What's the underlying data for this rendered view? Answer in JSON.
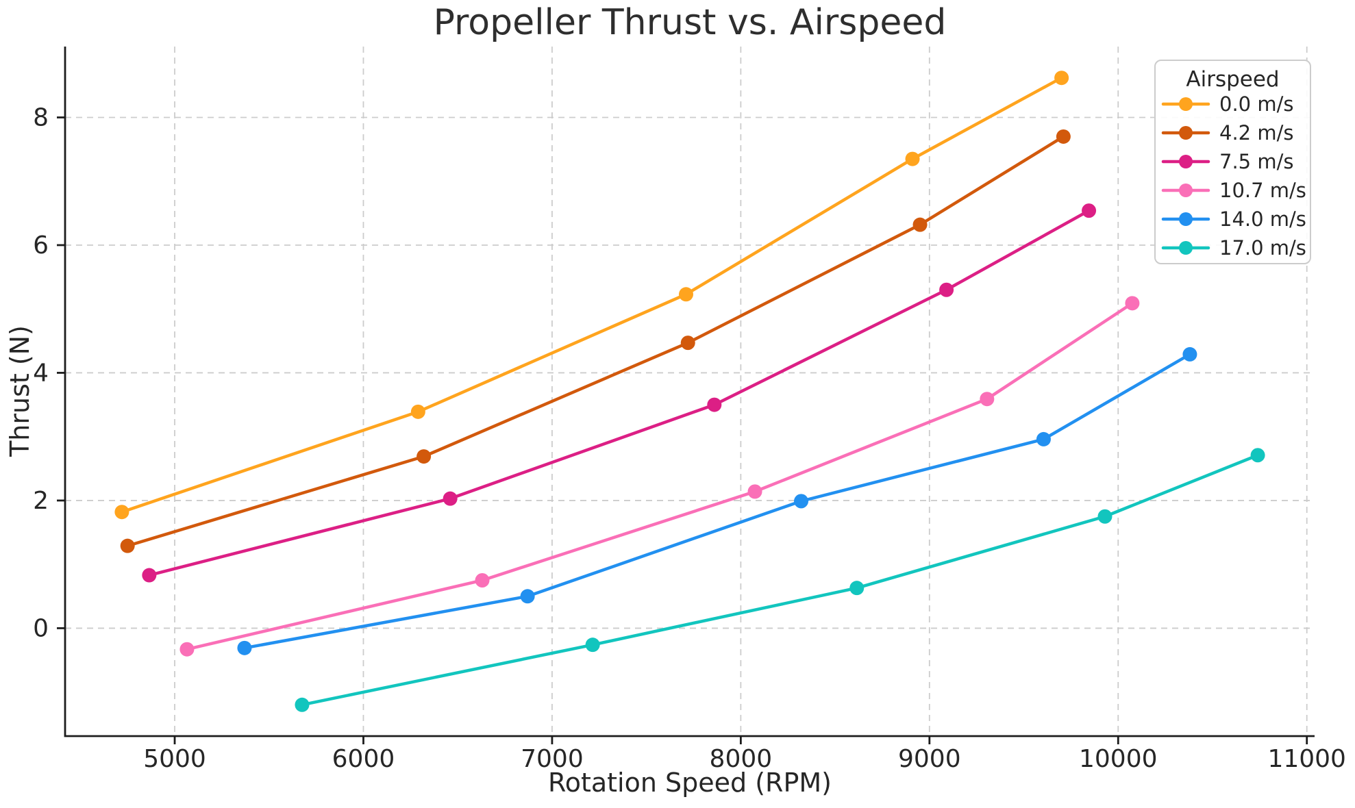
{
  "chart_data": {
    "type": "line",
    "title": "Propeller Thrust vs. Airspeed",
    "xlabel": "Rotation Speed (RPM)",
    "ylabel": "Thrust (N)",
    "xlim": [
      4419,
      11041
    ],
    "ylim": [
      -1.69,
      9.11
    ],
    "xticks": [
      5000,
      6000,
      7000,
      8000,
      9000,
      10000,
      11000
    ],
    "yticks": [
      0,
      2,
      4,
      6,
      8
    ],
    "grid": true,
    "grid_style": "dashed",
    "legend_title": "Airspeed",
    "legend_position": "upper right",
    "background_color": "#ffffff",
    "text_color": "#262626",
    "spine_color": "#1c1c1c",
    "grid_color": "#cccccc",
    "series": [
      {
        "name": "0.0 m/s",
        "color": "#FFA41E",
        "points": [
          [
            4720,
            1.82
          ],
          [
            6290,
            3.39
          ],
          [
            7710,
            5.23
          ],
          [
            8910,
            7.35
          ],
          [
            9700,
            8.62
          ]
        ]
      },
      {
        "name": "4.2 m/s",
        "color": "#D2590C",
        "points": [
          [
            4750,
            1.29
          ],
          [
            6320,
            2.69
          ],
          [
            7720,
            4.47
          ],
          [
            8950,
            6.32
          ],
          [
            9710,
            7.7
          ]
        ]
      },
      {
        "name": "7.5 m/s",
        "color": "#DC1F85",
        "points": [
          [
            4865,
            0.83
          ],
          [
            6460,
            2.03
          ],
          [
            7860,
            3.5
          ],
          [
            9090,
            5.3
          ],
          [
            9845,
            6.54
          ]
        ]
      },
      {
        "name": "10.7 m/s",
        "color": "#FA6FB7",
        "points": [
          [
            5065,
            -0.33
          ],
          [
            6630,
            0.75
          ],
          [
            8075,
            2.14
          ],
          [
            9305,
            3.59
          ],
          [
            10075,
            5.09
          ]
        ]
      },
      {
        "name": "14.0 m/s",
        "color": "#2290F0",
        "points": [
          [
            5370,
            -0.31
          ],
          [
            6870,
            0.5
          ],
          [
            8320,
            1.99
          ],
          [
            9605,
            2.96
          ],
          [
            10380,
            4.29
          ]
        ]
      },
      {
        "name": "17.0 m/s",
        "color": "#12C5BE",
        "points": [
          [
            5675,
            -1.2
          ],
          [
            7215,
            -0.26
          ],
          [
            8615,
            0.63
          ],
          [
            9930,
            1.75
          ],
          [
            10740,
            2.71
          ]
        ]
      }
    ]
  }
}
